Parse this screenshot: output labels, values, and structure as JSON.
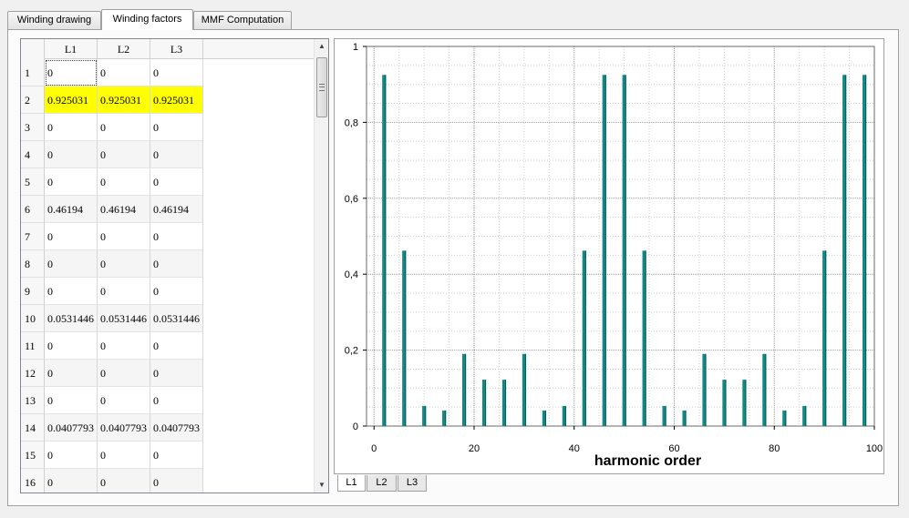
{
  "tabs": [
    {
      "label": "Winding drawing",
      "active": false
    },
    {
      "label": "Winding factors",
      "active": true
    },
    {
      "label": "MMF Computation",
      "active": false
    }
  ],
  "table": {
    "columns": [
      "L1",
      "L2",
      "L3"
    ],
    "rows": [
      {
        "n": "1",
        "values": [
          "0",
          "0",
          "0"
        ]
      },
      {
        "n": "2",
        "values": [
          "0.925031",
          "0.925031",
          "0.925031"
        ]
      },
      {
        "n": "3",
        "values": [
          "0",
          "0",
          "0"
        ]
      },
      {
        "n": "4",
        "values": [
          "0",
          "0",
          "0"
        ]
      },
      {
        "n": "5",
        "values": [
          "0",
          "0",
          "0"
        ]
      },
      {
        "n": "6",
        "values": [
          "0.46194",
          "0.46194",
          "0.46194"
        ]
      },
      {
        "n": "7",
        "values": [
          "0",
          "0",
          "0"
        ]
      },
      {
        "n": "8",
        "values": [
          "0",
          "0",
          "0"
        ]
      },
      {
        "n": "9",
        "values": [
          "0",
          "0",
          "0"
        ]
      },
      {
        "n": "10",
        "values": [
          "0.0531446",
          "0.0531446",
          "0.0531446"
        ]
      },
      {
        "n": "11",
        "values": [
          "0",
          "0",
          "0"
        ]
      },
      {
        "n": "12",
        "values": [
          "0",
          "0",
          "0"
        ]
      },
      {
        "n": "13",
        "values": [
          "0",
          "0",
          "0"
        ]
      },
      {
        "n": "14",
        "values": [
          "0.0407793",
          "0.0407793",
          "0.0407793"
        ]
      },
      {
        "n": "15",
        "values": [
          "0",
          "0",
          "0"
        ]
      },
      {
        "n": "16",
        "values": [
          "0",
          "0",
          "0"
        ]
      }
    ],
    "highlight_row": "2",
    "highlight_color": "#ffff00"
  },
  "chart_data": {
    "type": "bar",
    "xlabel": "harmonic order",
    "ylabel": "",
    "xlim": [
      -1.5,
      100
    ],
    "ylim": [
      0,
      1
    ],
    "xticks": [
      "0",
      "20",
      "40",
      "60",
      "80",
      "100"
    ],
    "xtick_values": [
      0,
      20,
      40,
      60,
      80,
      100
    ],
    "yticks": [
      "0",
      "0,2",
      "0,4",
      "0,6",
      "0,8",
      "1"
    ],
    "ytick_values": [
      0,
      0.2,
      0.4,
      0.6,
      0.8,
      1
    ],
    "grid": true,
    "bar_color": "#128a86",
    "x": [
      2,
      6,
      10,
      14,
      18,
      22,
      26,
      30,
      34,
      38,
      42,
      46,
      50,
      54,
      58,
      62,
      66,
      70,
      74,
      78,
      82,
      86,
      90,
      94,
      98
    ],
    "values": [
      0.925,
      0.462,
      0.053,
      0.041,
      0.19,
      0.122,
      0.122,
      0.19,
      0.041,
      0.053,
      0.462,
      0.925,
      0.925,
      0.462,
      0.053,
      0.041,
      0.19,
      0.122,
      0.122,
      0.19,
      0.041,
      0.053,
      0.462,
      0.925,
      0.925
    ]
  },
  "bottom_tabs": [
    {
      "label": "L1",
      "active": true
    },
    {
      "label": "L2",
      "active": false
    },
    {
      "label": "L3",
      "active": false
    }
  ]
}
